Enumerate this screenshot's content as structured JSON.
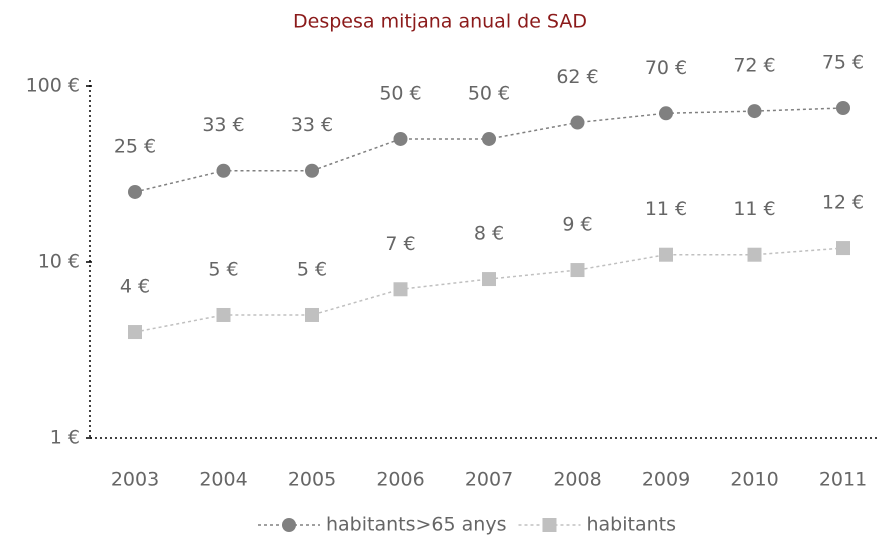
{
  "chart_data": {
    "type": "line",
    "title": "Despesa mitjana anual de SAD",
    "categories": [
      "2003",
      "2004",
      "2005",
      "2006",
      "2007",
      "2008",
      "2009",
      "2010",
      "2011"
    ],
    "series": [
      {
        "name": "habitants>65 anys",
        "color": "#808080",
        "marker": "circle",
        "values": [
          25,
          33,
          33,
          50,
          50,
          62,
          70,
          72,
          75
        ],
        "value_labels": [
          "25 €",
          "33 €",
          "33 €",
          "50 €",
          "50 €",
          "62 €",
          "70 €",
          "72 €",
          "75 €"
        ]
      },
      {
        "name": "habitants",
        "color": "#c0c0c0",
        "marker": "square",
        "values": [
          4,
          5,
          5,
          7,
          8,
          9,
          11,
          11,
          12
        ],
        "value_labels": [
          "4 €",
          "5 €",
          "5 €",
          "7 €",
          "8 €",
          "9 €",
          "11 €",
          "11 €",
          "12 €"
        ]
      }
    ],
    "ylim": [
      1,
      100
    ],
    "log_y": true,
    "yticks": [
      {
        "value": 1,
        "label": "1 €"
      },
      {
        "value": 10,
        "label": "10 €"
      },
      {
        "value": 100,
        "label": "100 €"
      }
    ],
    "grid": false,
    "legend": "bottom"
  }
}
